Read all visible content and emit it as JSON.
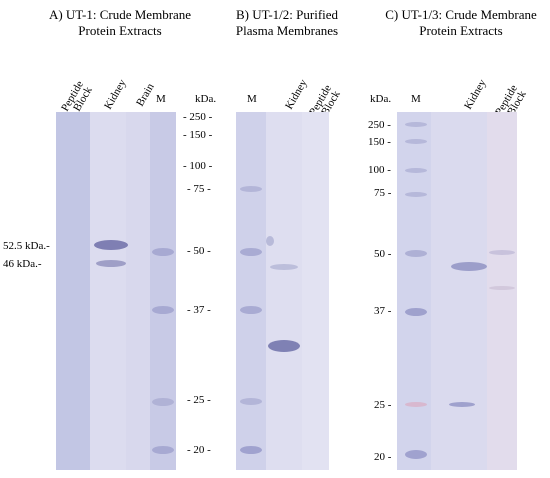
{
  "panels": [
    {
      "title_line1": "A) UT-1: Crude Membrane",
      "title_line2": "Protein Extracts",
      "lane_labels": {
        "peptide_block_1": "Peptide",
        "peptide_block_2": "Block",
        "kidney": "Kidney",
        "brain": "Brain",
        "m": "M"
      },
      "side_markers": [
        "52.5 kDa.-",
        "46 kDa.-"
      ]
    },
    {
      "title_line1": "B) UT-1/2: Purified",
      "title_line2": "Plasma Membranes",
      "lane_labels": {
        "m": "M",
        "kidney": "Kidney",
        "peptide_block_1": "Peptide",
        "peptide_block_2": "Block"
      }
    },
    {
      "title_line1": "C) UT-1/3: Crude Membrane",
      "title_line2": "Protein Extracts",
      "lane_labels": {
        "kda": "kDa.",
        "m": "M",
        "kidney": "Kidney",
        "peptide_block_1": "Peptide",
        "peptide_block_2": "Block"
      }
    }
  ],
  "center_ladder": {
    "unit": "kDa.",
    "values": [
      "250",
      "150",
      "100",
      "75",
      "50",
      "37",
      "25",
      "20"
    ]
  },
  "right_ladder": {
    "values": [
      "250",
      "150",
      "100",
      "75",
      "50",
      "37",
      "25",
      "20"
    ]
  }
}
